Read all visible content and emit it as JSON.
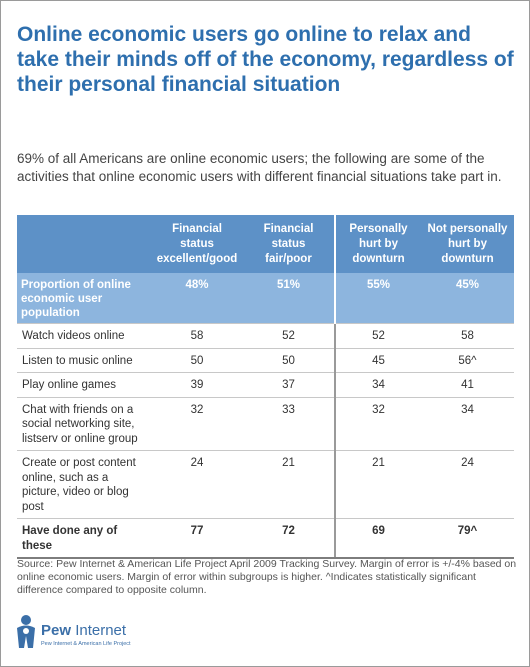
{
  "title": "Online economic users go online to relax and take their minds off of the economy, regardless of their personal financial situation",
  "subtitle": "69% of all Americans are online economic users; the following are some of the activities that online economic users with different financial situations take part in.",
  "colors": {
    "title": "#2e6fae",
    "header_bg": "#5d91c7",
    "highlight_row_bg": "#8db5de"
  },
  "chart_data": {
    "type": "table",
    "columns": [
      "Financial status excellent/good",
      "Financial status fair/poor",
      "Personally hurt by downturn",
      "Not personally hurt by downturn"
    ],
    "rows": [
      {
        "label": "Proportion of online economic user population",
        "values": [
          "48%",
          "51%",
          "55%",
          "45%"
        ]
      },
      {
        "label": "Watch videos online",
        "values": [
          "58",
          "52",
          "52",
          "58"
        ]
      },
      {
        "label": "Listen to music online",
        "values": [
          "50",
          "50",
          "45",
          "56^"
        ]
      },
      {
        "label": "Play online games",
        "values": [
          "39",
          "37",
          "34",
          "41"
        ]
      },
      {
        "label": "Chat with friends on a social networking site, listserv or online group",
        "values": [
          "32",
          "33",
          "32",
          "34"
        ]
      },
      {
        "label": "Create or post content online, such as a picture, video or blog post",
        "values": [
          "24",
          "21",
          "21",
          "24"
        ]
      },
      {
        "label": "Have done any of these",
        "values": [
          "77",
          "72",
          "69",
          "79^"
        ]
      }
    ]
  },
  "source": "Source:  Pew Internet & American Life Project April 2009 Tracking Survey. Margin of error is +/-4% based on online economic users. Margin of error within subgroups is higher. ^Indicates statistically significant difference compared to opposite column.",
  "logo": {
    "name_bold": "Pew",
    "name_light": "Internet",
    "tagline": "Pew Internet & American Life Project"
  }
}
